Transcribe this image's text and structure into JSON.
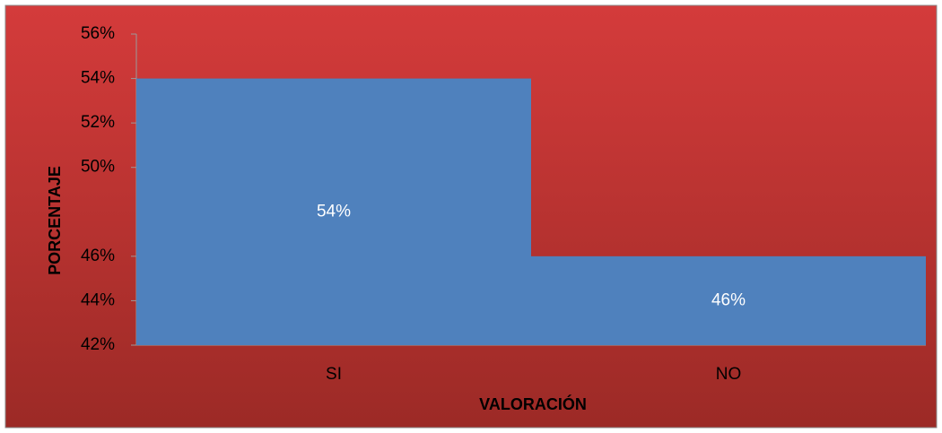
{
  "chart_data": {
    "type": "bar",
    "x_label": "VALORACIÓN",
    "y_label": "PORCENTAJE",
    "categories": [
      "SI",
      "NO"
    ],
    "values": [
      54,
      46
    ],
    "value_labels": [
      "54%",
      "46%"
    ],
    "color": "#4f81bd",
    "ylim": [
      42,
      56
    ],
    "yticks": [
      {
        "value": 42,
        "label": "42%"
      },
      {
        "value": 44,
        "label": "44%"
      },
      {
        "value": 46,
        "label": "46%"
      },
      {
        "value": 50,
        "label": "50%"
      },
      {
        "value": 52,
        "label": "52%"
      },
      {
        "value": 54,
        "label": "54%"
      },
      {
        "value": 56,
        "label": "56%"
      }
    ]
  }
}
